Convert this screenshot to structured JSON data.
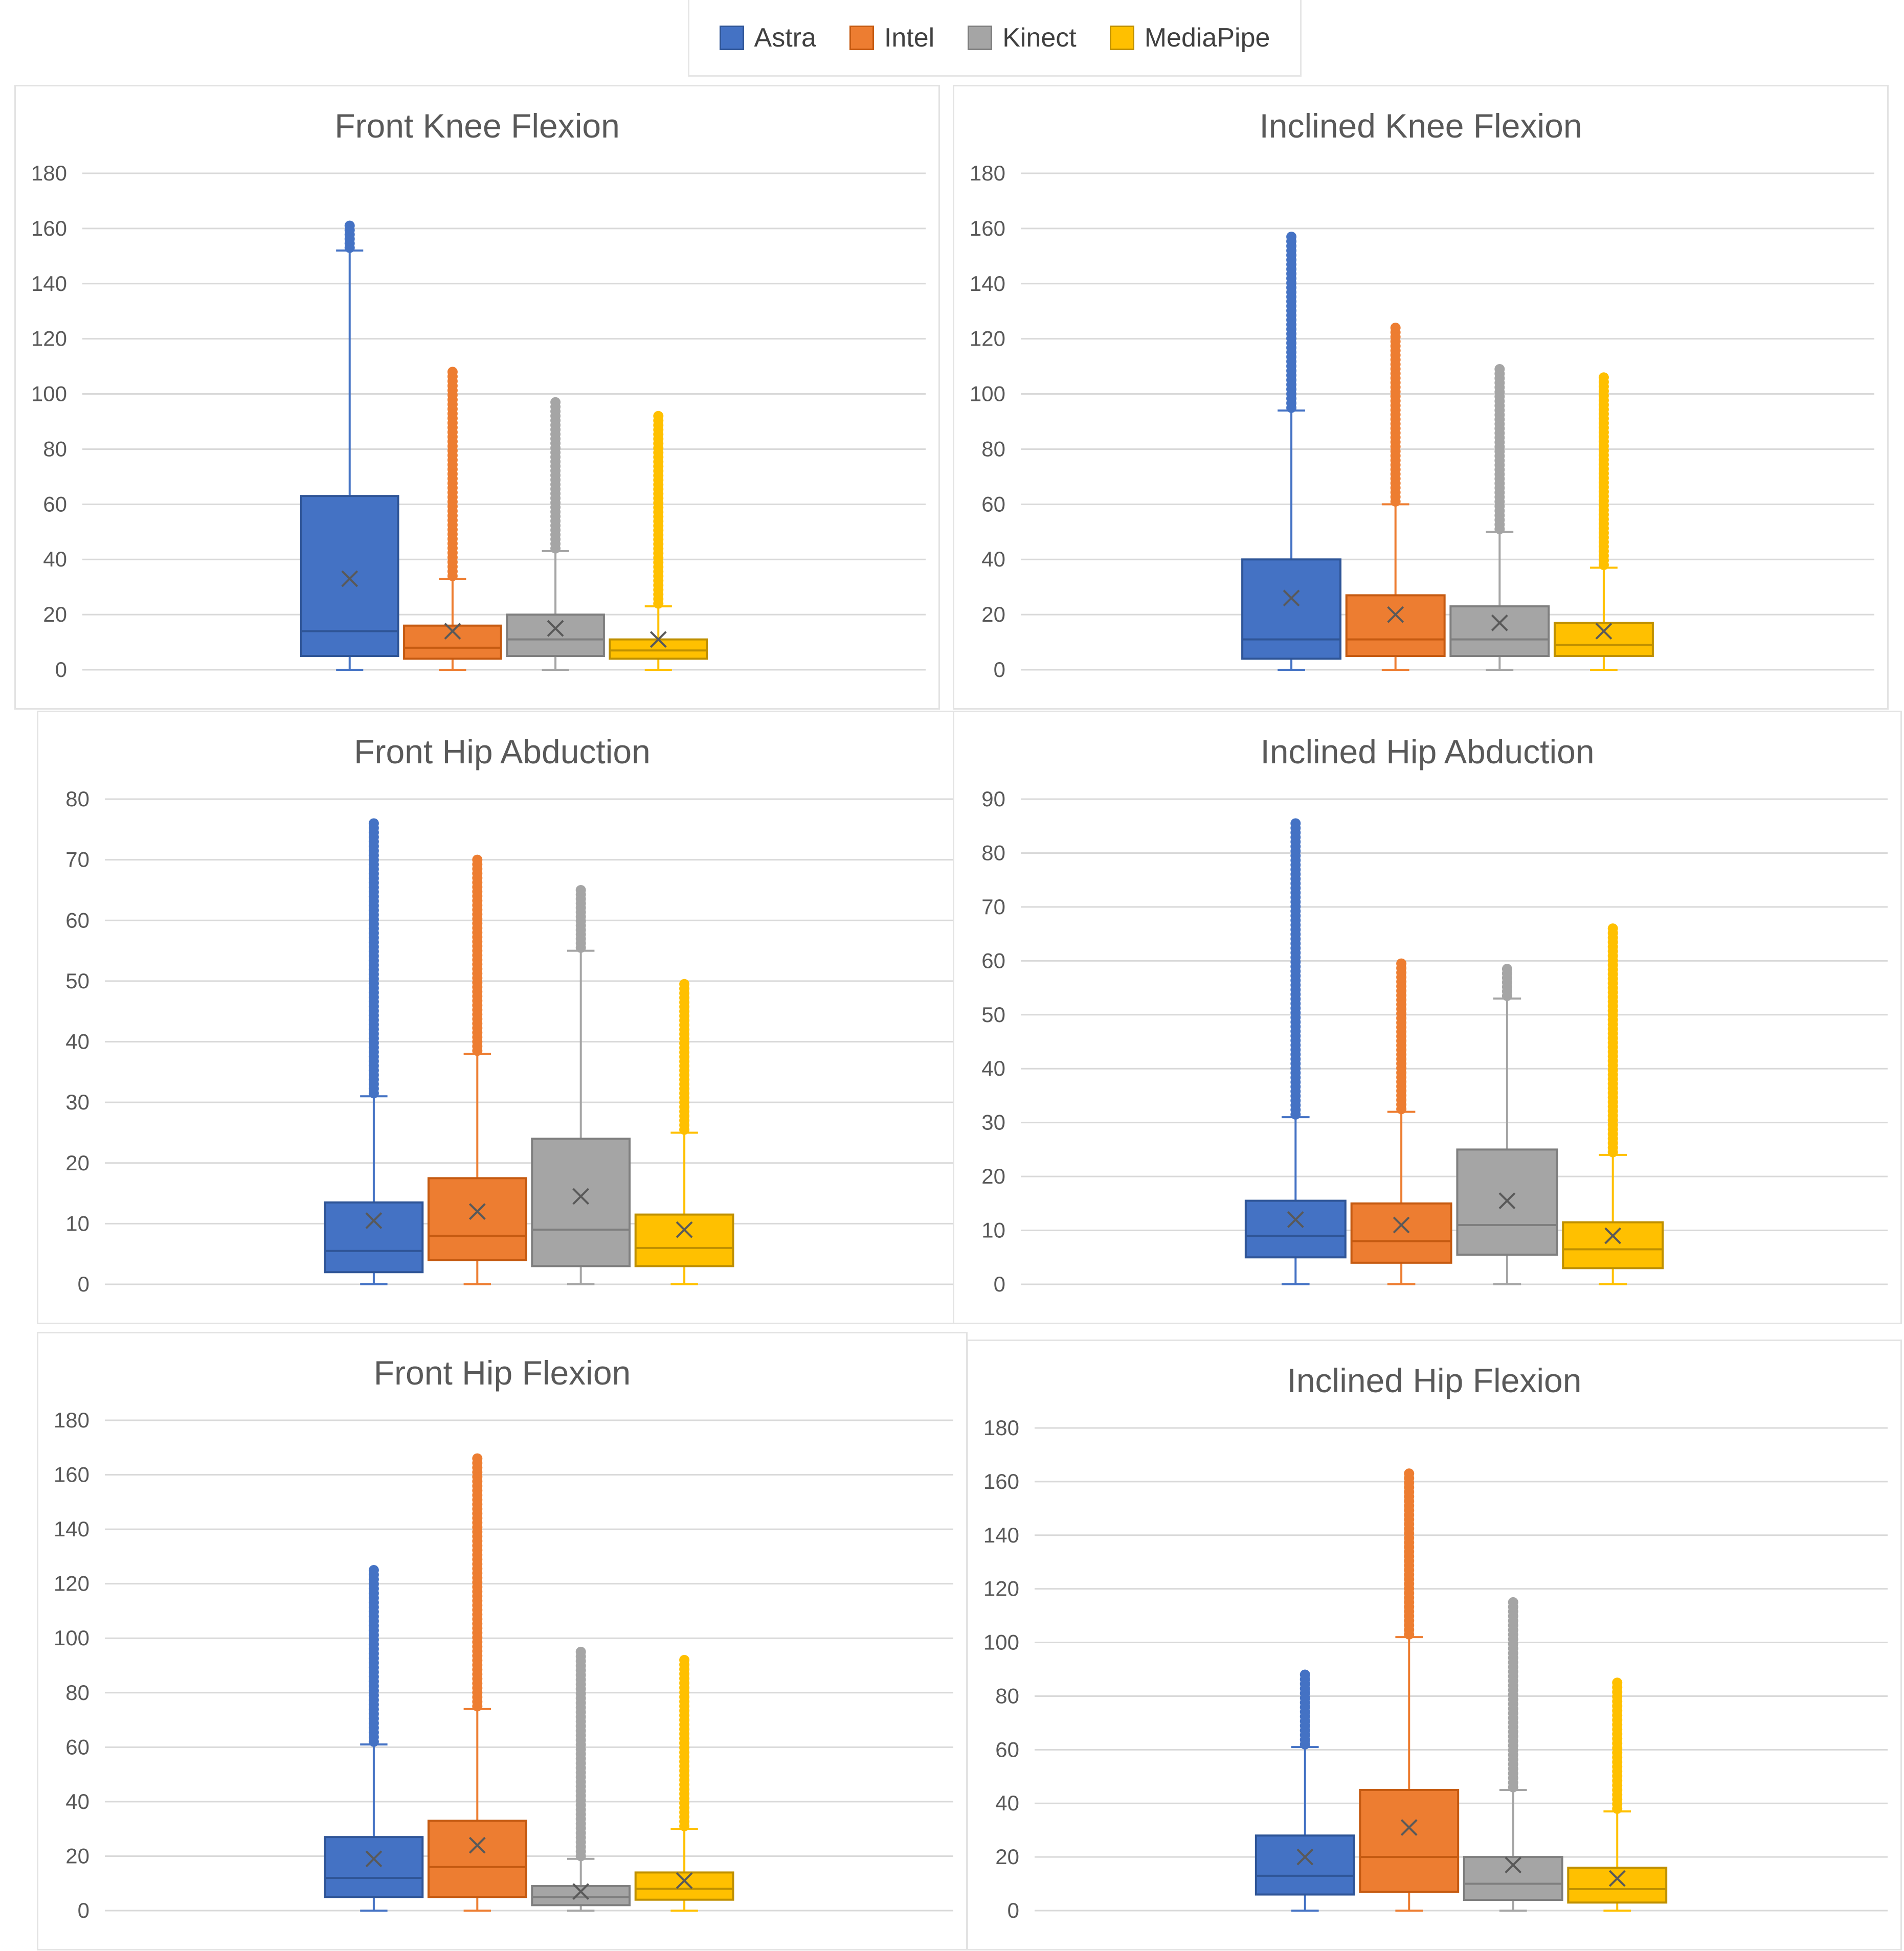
{
  "colors": {
    "Astra": {
      "fill": "#4472c4",
      "stroke": "#2f5597"
    },
    "Intel": {
      "fill": "#ed7d31",
      "stroke": "#c55a11"
    },
    "Kinect": {
      "fill": "#a5a5a5",
      "stroke": "#7f7f7f"
    },
    "MediaPipe": {
      "fill": "#ffc000",
      "stroke": "#bf9000"
    },
    "grid": "#d9d9d9",
    "mean_marker": "#595959"
  },
  "legend": [
    {
      "name": "Astra"
    },
    {
      "name": "Intel"
    },
    {
      "name": "Kinect"
    },
    {
      "name": "MediaPipe"
    }
  ],
  "chart_data": [
    {
      "type": "box",
      "title": "Front Knee Flexion",
      "ylim": [
        0,
        180
      ],
      "yticks": [
        0,
        20,
        40,
        60,
        80,
        100,
        120,
        140,
        160,
        180
      ],
      "series": [
        {
          "name": "Astra",
          "min": 0,
          "q1": 5,
          "median": 14,
          "q3": 63,
          "whisker_high": 152,
          "mean": 33,
          "outlier_low": 153,
          "outlier_high": 161
        },
        {
          "name": "Intel",
          "min": 0,
          "q1": 4,
          "median": 8,
          "q3": 16,
          "whisker_high": 33,
          "mean": 14,
          "outlier_low": 34,
          "outlier_high": 108
        },
        {
          "name": "Kinect",
          "min": 0,
          "q1": 5,
          "median": 11,
          "q3": 20,
          "whisker_high": 43,
          "mean": 15,
          "outlier_low": 44,
          "outlier_high": 97
        },
        {
          "name": "MediaPipe",
          "min": 0,
          "q1": 4,
          "median": 7,
          "q3": 11,
          "whisker_high": 23,
          "mean": 11,
          "outlier_low": 24,
          "outlier_high": 92
        }
      ]
    },
    {
      "type": "box",
      "title": "Inclined Knee Flexion",
      "ylim": [
        0,
        180
      ],
      "yticks": [
        0,
        20,
        40,
        60,
        80,
        100,
        120,
        140,
        160,
        180
      ],
      "series": [
        {
          "name": "Astra",
          "min": 0,
          "q1": 4,
          "median": 11,
          "q3": 40,
          "whisker_high": 94,
          "mean": 26,
          "outlier_low": 95,
          "outlier_high": 157
        },
        {
          "name": "Intel",
          "min": 0,
          "q1": 5,
          "median": 11,
          "q3": 27,
          "whisker_high": 60,
          "mean": 20,
          "outlier_low": 61,
          "outlier_high": 124
        },
        {
          "name": "Kinect",
          "min": 0,
          "q1": 5,
          "median": 11,
          "q3": 23,
          "whisker_high": 50,
          "mean": 17,
          "outlier_low": 51,
          "outlier_high": 109
        },
        {
          "name": "MediaPipe",
          "min": 0,
          "q1": 5,
          "median": 9,
          "q3": 17,
          "whisker_high": 37,
          "mean": 14,
          "outlier_low": 38,
          "outlier_high": 106
        }
      ]
    },
    {
      "type": "box",
      "title": "Front Hip Abduction",
      "ylim": [
        0,
        80
      ],
      "yticks": [
        0,
        10,
        20,
        30,
        40,
        50,
        60,
        70,
        80
      ],
      "series": [
        {
          "name": "Astra",
          "min": 0,
          "q1": 2,
          "median": 5.5,
          "q3": 13.5,
          "whisker_high": 31,
          "mean": 10.5,
          "outlier_low": 31.5,
          "outlier_high": 76
        },
        {
          "name": "Intel",
          "min": 0,
          "q1": 4,
          "median": 8,
          "q3": 17.5,
          "whisker_high": 38,
          "mean": 12,
          "outlier_low": 38.5,
          "outlier_high": 70
        },
        {
          "name": "Kinect",
          "min": 0,
          "q1": 3,
          "median": 9,
          "q3": 24,
          "whisker_high": 55,
          "mean": 14.5,
          "outlier_low": 55.5,
          "outlier_high": 65
        },
        {
          "name": "MediaPipe",
          "min": 0,
          "q1": 3,
          "median": 6,
          "q3": 11.5,
          "whisker_high": 25,
          "mean": 9,
          "outlier_low": 25.5,
          "outlier_high": 49.5
        }
      ]
    },
    {
      "type": "box",
      "title": "Inclined Hip Abduction",
      "ylim": [
        0,
        90
      ],
      "yticks": [
        0,
        10,
        20,
        30,
        40,
        50,
        60,
        70,
        80,
        90
      ],
      "series": [
        {
          "name": "Astra",
          "min": 0,
          "q1": 5,
          "median": 9,
          "q3": 15.5,
          "whisker_high": 31,
          "mean": 12,
          "outlier_low": 31.5,
          "outlier_high": 85.5
        },
        {
          "name": "Intel",
          "min": 0,
          "q1": 4,
          "median": 8,
          "q3": 15,
          "whisker_high": 32,
          "mean": 11,
          "outlier_low": 32.5,
          "outlier_high": 59.5
        },
        {
          "name": "Kinect",
          "min": 0,
          "q1": 5.5,
          "median": 11,
          "q3": 25,
          "whisker_high": 53,
          "mean": 15.5,
          "outlier_low": 53.5,
          "outlier_high": 58.5
        },
        {
          "name": "MediaPipe",
          "min": 0,
          "q1": 3,
          "median": 6.5,
          "q3": 11.5,
          "whisker_high": 24,
          "mean": 9,
          "outlier_low": 24.5,
          "outlier_high": 66
        }
      ]
    },
    {
      "type": "box",
      "title": "Front Hip Flexion",
      "ylim": [
        0,
        180
      ],
      "yticks": [
        0,
        20,
        40,
        60,
        80,
        100,
        120,
        140,
        160,
        180
      ],
      "series": [
        {
          "name": "Astra",
          "min": 0,
          "q1": 5,
          "median": 12,
          "q3": 27,
          "whisker_high": 61,
          "mean": 19,
          "outlier_low": 62,
          "outlier_high": 125
        },
        {
          "name": "Intel",
          "min": 0,
          "q1": 5,
          "median": 16,
          "q3": 33,
          "whisker_high": 74,
          "mean": 24,
          "outlier_low": 75,
          "outlier_high": 166
        },
        {
          "name": "Kinect",
          "min": 0,
          "q1": 2,
          "median": 5,
          "q3": 9,
          "whisker_high": 19,
          "mean": 7,
          "outlier_low": 20,
          "outlier_high": 95
        },
        {
          "name": "MediaPipe",
          "min": 0,
          "q1": 4,
          "median": 8,
          "q3": 14,
          "whisker_high": 30,
          "mean": 11,
          "outlier_low": 31,
          "outlier_high": 92
        }
      ]
    },
    {
      "type": "box",
      "title": "Inclined Hip Flexion",
      "ylim": [
        0,
        180
      ],
      "yticks": [
        0,
        20,
        40,
        60,
        80,
        100,
        120,
        140,
        160,
        180
      ],
      "series": [
        {
          "name": "Astra",
          "min": 0,
          "q1": 6,
          "median": 13,
          "q3": 28,
          "whisker_high": 61,
          "mean": 20,
          "outlier_low": 62,
          "outlier_high": 88
        },
        {
          "name": "Intel",
          "min": 0,
          "q1": 7,
          "median": 20,
          "q3": 45,
          "whisker_high": 102,
          "mean": 31,
          "outlier_low": 103,
          "outlier_high": 163
        },
        {
          "name": "Kinect",
          "min": 0,
          "q1": 4,
          "median": 10,
          "q3": 20,
          "whisker_high": 45,
          "mean": 17,
          "outlier_low": 46,
          "outlier_high": 115
        },
        {
          "name": "MediaPipe",
          "min": 0,
          "q1": 3,
          "median": 8,
          "q3": 16,
          "whisker_high": 37,
          "mean": 12,
          "outlier_low": 38,
          "outlier_high": 85
        }
      ]
    }
  ]
}
